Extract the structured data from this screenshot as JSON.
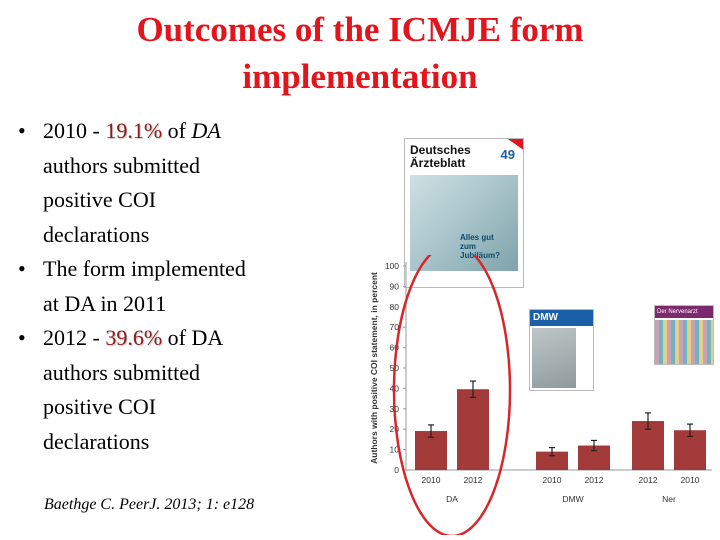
{
  "slide": {
    "title_line1": "Outcomes of the ICMJE form",
    "title_line2": "implementation",
    "bullets": {
      "b1_pre": "2010 - ",
      "b1_pct": "19.1%",
      "b1_post": " of ",
      "b1_da": "DA",
      "b1_l2": "authors submitted",
      "b1_l3": "positive COI",
      "b1_l4": "declarations",
      "b2_l1": "The form implemented",
      "b2_l2": "at DA in 2011",
      "b3_pre": "2012 - ",
      "b3_pct": "39.6%",
      "b3_post": " of DA",
      "b3_l2": "authors submitted",
      "b3_l3": "positive COI",
      "b3_l4": "declarations"
    },
    "bullet_glyph": "•",
    "citation": "Baethge C. PeerJ. 2013; 1: e128"
  },
  "covers": {
    "da_title1": "Deutsches",
    "da_title2": "Ärzteblatt",
    "da_issue": "49",
    "da_headline1": "Alles gut",
    "da_headline2": "zum Jubiläum?",
    "dmw_title": "DMW",
    "ner_title": "Der Nervenarzt"
  },
  "colors": {
    "title": "#e3141b",
    "bar": "#a33a3a",
    "highlight_circle": "#d9262b",
    "axis_text": "#333333"
  },
  "chart_data": {
    "type": "bar",
    "ylabel": "Authors with positive COI statement, in percent",
    "ylim": [
      0,
      100
    ],
    "yticks": [
      0,
      10,
      20,
      30,
      40,
      50,
      60,
      70,
      80,
      90,
      100
    ],
    "groups": [
      {
        "name": "DA",
        "bars": [
          {
            "x": "2010",
            "value": 19.1,
            "err": 3
          },
          {
            "x": "2012",
            "value": 39.6,
            "err": 4
          }
        ]
      },
      {
        "name": "DMW",
        "bars": [
          {
            "x": "2010",
            "value": 9,
            "err": 2
          },
          {
            "x": "2012",
            "value": 12,
            "err": 2.5
          }
        ]
      },
      {
        "name": "Ner",
        "bars": [
          {
            "x": "2012",
            "value": 24,
            "err": 4
          },
          {
            "x": "2010",
            "value": 19.5,
            "err": 3
          }
        ]
      }
    ],
    "highlight": "DA",
    "grid": false
  }
}
